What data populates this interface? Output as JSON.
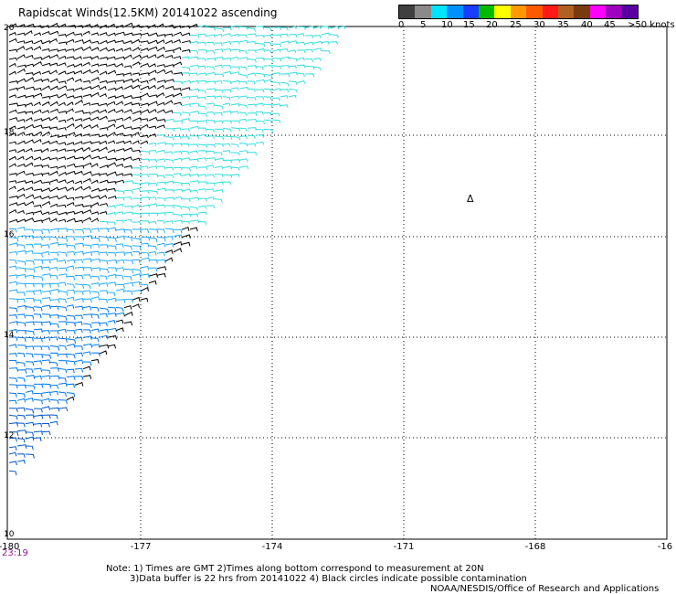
{
  "title": "Rapidscat Winds(12.5KM) 20141022 ascending",
  "legend": {
    "labels": [
      "0",
      "5",
      "10",
      "15",
      "20",
      "25",
      "30",
      "35",
      "40",
      "45",
      ">50 knots"
    ],
    "colors": [
      "#404040",
      "#8a8a8a",
      "#00e5ff",
      "#0090ff",
      "#1a3cff",
      "#00bb00",
      "#ffff00",
      "#ff9900",
      "#ff5a00",
      "#ff1a1a",
      "#b06020",
      "#7a3a10",
      "#ff00ff",
      "#a000c0",
      "#5a00a0"
    ]
  },
  "axes": {
    "lat_labels": [
      "20",
      "18",
      "16",
      "14",
      "12",
      "10"
    ],
    "lon_labels": [
      "-180",
      "-177",
      "-174",
      "-171",
      "-168",
      "-16"
    ]
  },
  "time_label": "23:19",
  "marker": "Δ",
  "notes": {
    "line1": "Note: 1) Times are GMT 2)Times along bottom correspond to measurement at 20N",
    "line2": "3)Data buffer is 22 hrs from 20141022 4) Black circles indicate possible contamination",
    "line3": "NOAA/NESDIS/Office of Research and Applications"
  },
  "wind_colors": {
    "high_black": "#000000",
    "cyan": "#33dddd",
    "light_blue": "#22aaff",
    "blue": "#0077ee",
    "dark_blue": "#0055cc"
  }
}
